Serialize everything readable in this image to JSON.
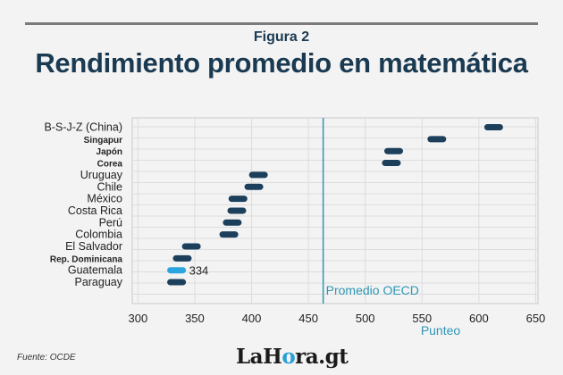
{
  "figure_label": "Figura 2",
  "title": "Rendimiento promedio en matemática",
  "source": "Fuente: OCDE",
  "logo": {
    "part1": "LaH",
    "part2": "ra.gt"
  },
  "colors": {
    "dot": "#1c3f5c",
    "highlight": "#2aa5e0",
    "reference_line": "#2e97b5",
    "grid": "#dddddd",
    "text": "#1a3a52"
  },
  "chart_data": {
    "type": "scatter",
    "orientation": "horizontal",
    "categories": [
      "B-S-J-Z (China)",
      "Singapur",
      "Japón",
      "Corea",
      "Uruguay",
      "Chile",
      "México",
      "Costa Rica",
      "Perú",
      "Colombia",
      "El Salvador",
      "Rep. Dominicana",
      "Guatemala",
      "Paraguay"
    ],
    "values": [
      613,
      563,
      525,
      523,
      406,
      402,
      388,
      387,
      383,
      380,
      347,
      339,
      334,
      334
    ],
    "bold_categories": [
      "Singapur",
      "Japón",
      "Corea",
      "Rep. Dominicana"
    ],
    "highlight": {
      "category": "Guatemala",
      "label": "334"
    },
    "reference_line": {
      "value": 463,
      "label": "Promedio OECD"
    },
    "xlabel": "Punteo",
    "xlim": [
      295,
      652
    ],
    "xticks": [
      300,
      350,
      400,
      450,
      500,
      550,
      600,
      650
    ],
    "grid": true
  }
}
